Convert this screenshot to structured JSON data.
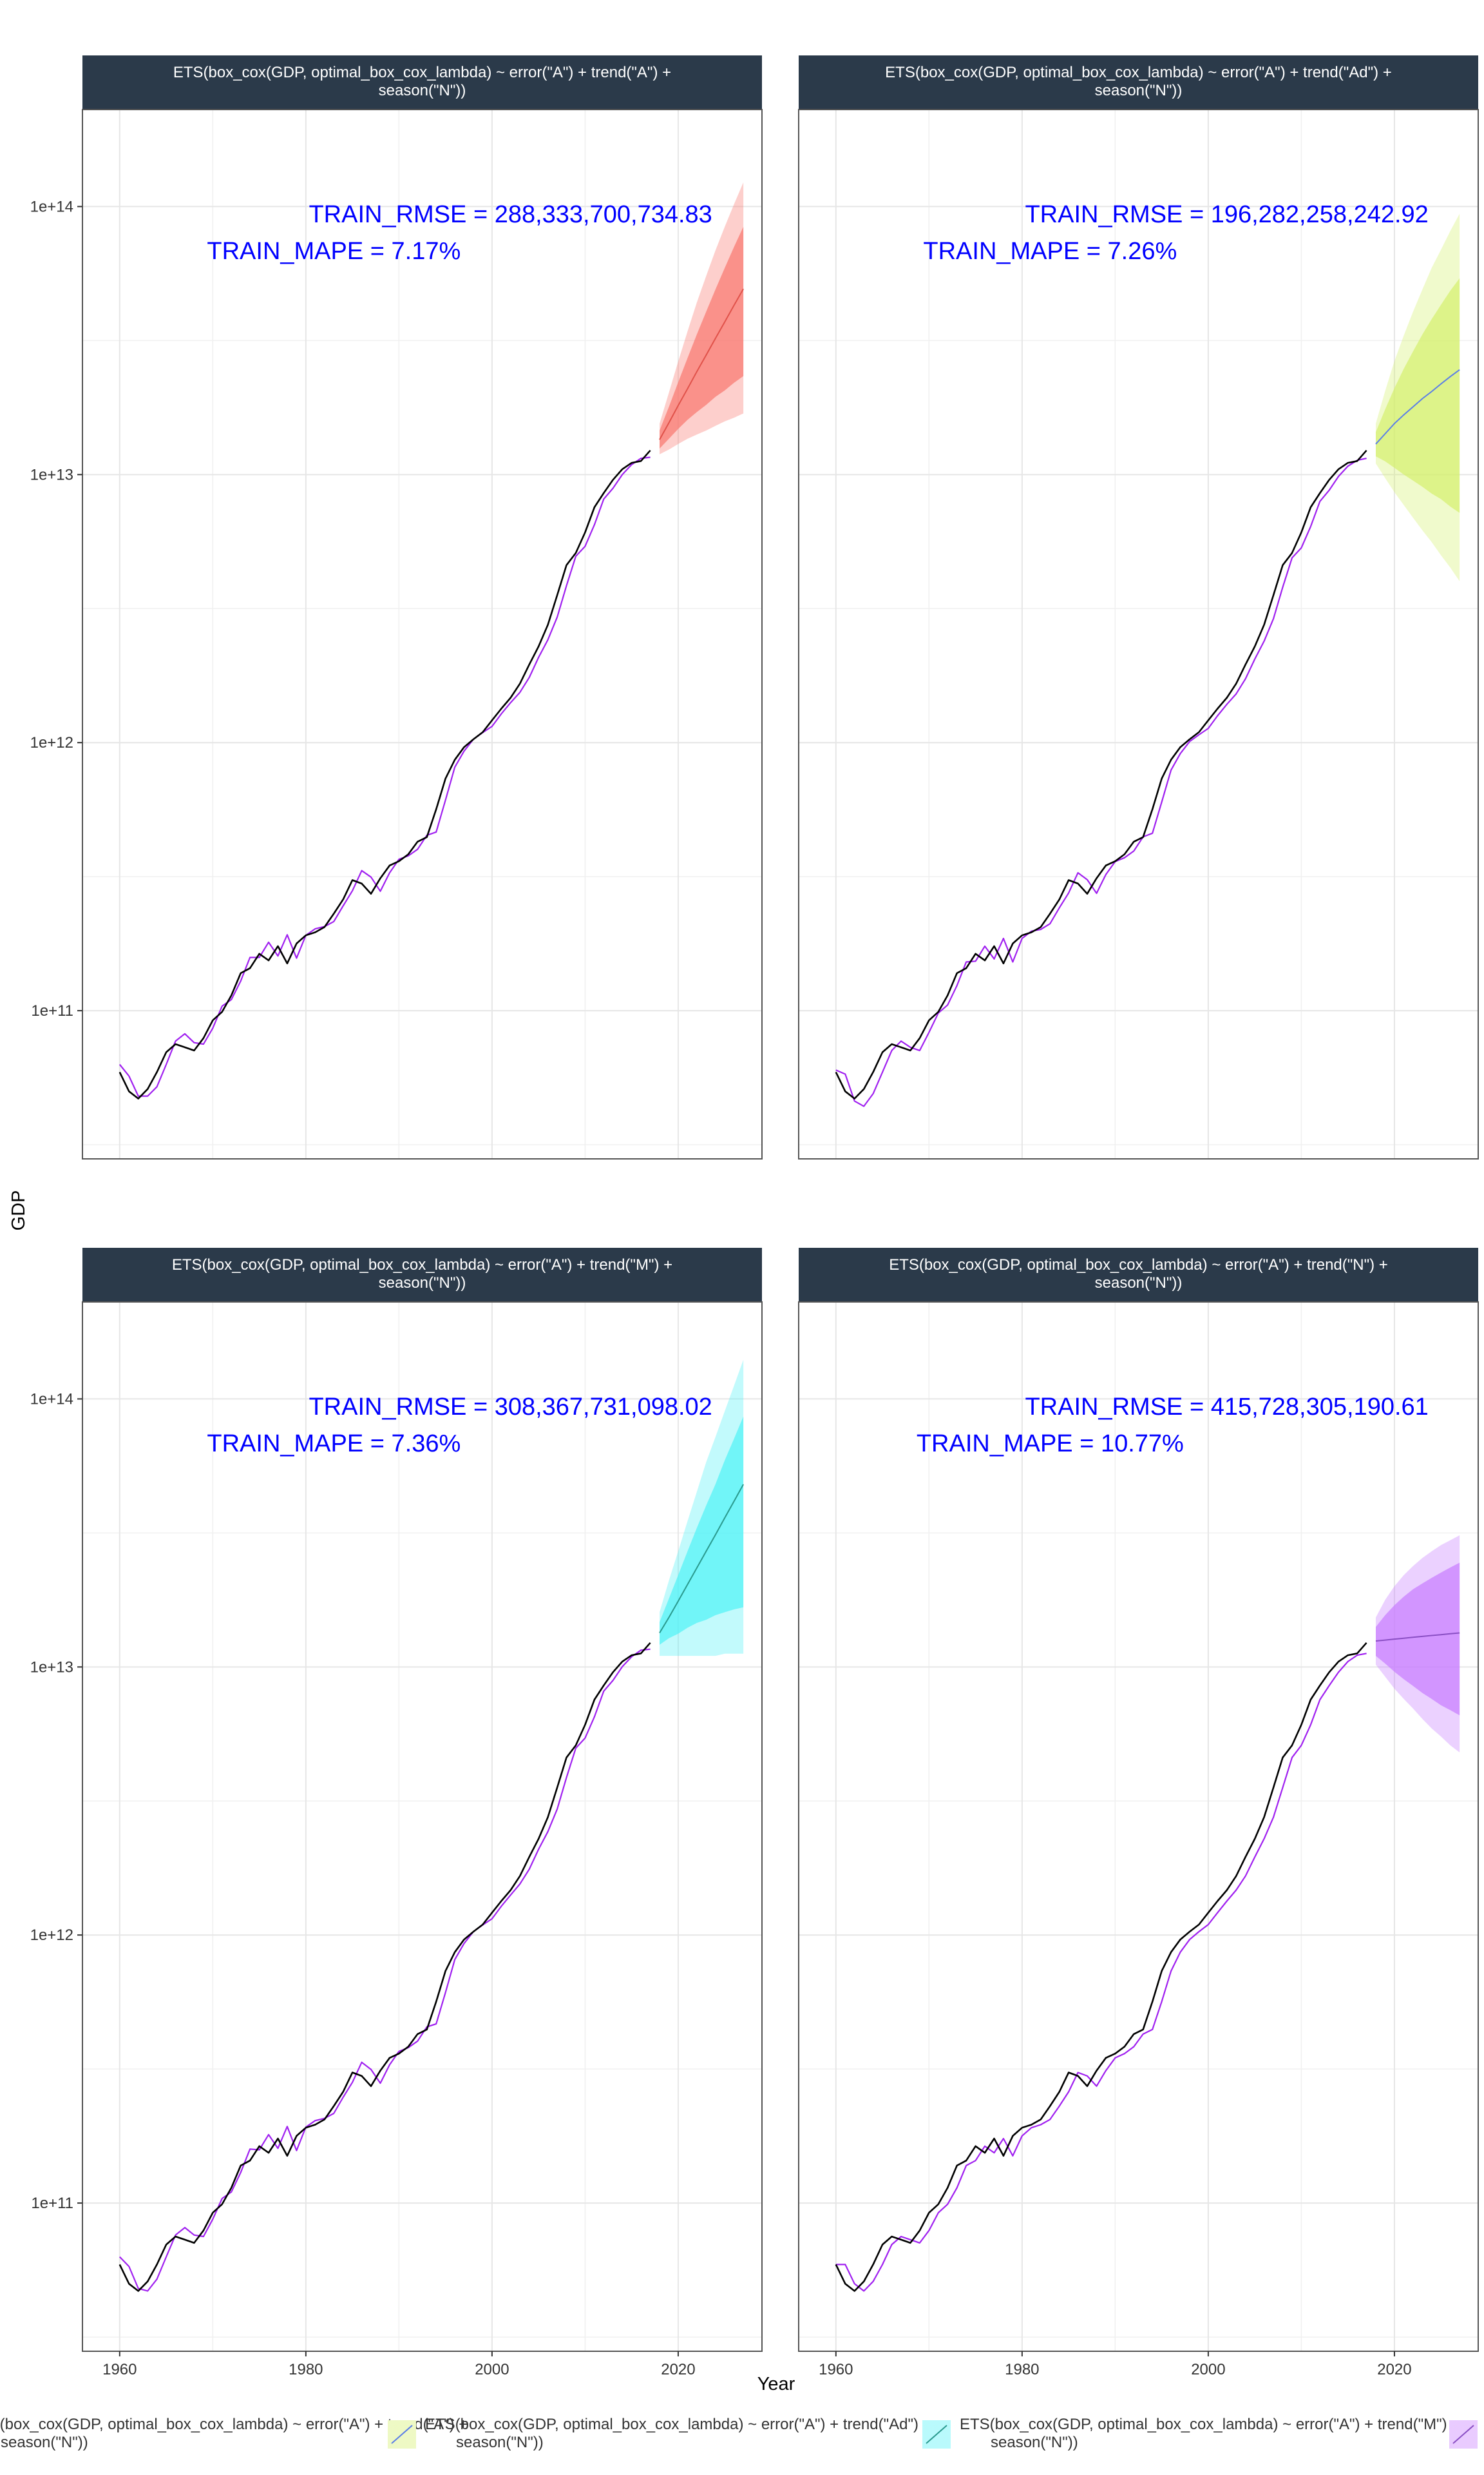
{
  "chart_data": {
    "type": "line",
    "xlabel": "Year",
    "ylabel": "GDP",
    "y_scale": "log10",
    "xlim": [
      1956,
      2029
    ],
    "ylim": [
      28000000000,
      230000000000000
    ],
    "x_ticks": [
      1960,
      1980,
      2000,
      2020
    ],
    "y_ticks": [
      {
        "value": 100000000000,
        "label": "1e+11"
      },
      {
        "value": 1000000000000,
        "label": "1e+12"
      },
      {
        "value": 10000000000000,
        "label": "1e+13"
      },
      {
        "value": 100000000000000,
        "label": "1e+14"
      }
    ],
    "grid": true,
    "legend_position": "bottom",
    "colors": {
      "actual": "#000000",
      "fitted": "#a020f0",
      "strip_bg": "#2b3a4a",
      "panel_border": "#555555",
      "grid": "#e6e6e6",
      "annotation": "#0000ff"
    },
    "actual_series": {
      "x_start": 1960,
      "values": [
        59000000000.0,
        50000000000.0,
        47000000000.0,
        51000000000.0,
        59000000000.0,
        70000000000.0,
        75000000000.0,
        73000000000.0,
        71000000000.0,
        79000000000.0,
        92000000000.0,
        99000000000.0,
        114000000000.0,
        138000000000.0,
        144000000000.0,
        163000000000.0,
        154000000000.0,
        174000000000.0,
        150000000000.0,
        178000000000.0,
        191000000000.0,
        196000000000.0,
        205000000000.0,
        230000000000.0,
        260000000000.0,
        307000000000.0,
        298000000000.0,
        273000000000.0,
        312000000000.0,
        348000000000.0,
        361000000000.0,
        383000000000.0,
        427000000000.0,
        444000000000.0,
        564000000000.0,
        734000000000.0,
        863000000000.0,
        962000000000.0,
        1029000000000.0,
        1094000000000.0,
        1211000000000.0,
        1339000000000.0,
        1471000000000.0,
        1660000000000.0,
        1955000000000.0,
        2286000000000.0,
        2752000000000.0,
        3550000000000.0,
        4594000000000.0,
        5102000000000.0,
        6087000000000.0,
        7552000000000.0,
        8532000000000.0,
        9570000000000.0,
        10475000000000.0,
        11061000000000.0,
        11233000000000.0,
        12310000000000.0
      ]
    },
    "panels": [
      {
        "title": "ETS(box_cox(GDP, optimal_box_cox_lambda) ~ error(\"A\") + trend(\"A\") +\nseason(\"N\"))",
        "rmse_text": "TRAIN_RMSE = 288,333,700,734.83",
        "mape_text": "TRAIN_MAPE = 7.17%",
        "fill": "#f8766d",
        "line": "#e0524a",
        "fitted": [
          63000000000.0,
          57000000000.0,
          48000000000.0,
          48000000000.0,
          52000000000.0,
          63000000000.0,
          77000000000.0,
          82000000000.0,
          76000000000.0,
          75000000000.0,
          86000000000.0,
          104000000000.0,
          110000000000.0,
          129000000000.0,
          158000000000.0,
          158000000000.0,
          180000000000.0,
          160000000000.0,
          192000000000.0,
          157000000000.0,
          191000000000.0,
          202000000000.0,
          206000000000.0,
          215000000000.0,
          246000000000.0,
          280000000000.0,
          333000000000.0,
          315000000000.0,
          279000000000.0,
          327000000000.0,
          367000000000.0,
          378000000000.0,
          400000000000.0,
          451000000000.0,
          464000000000.0,
          610000000000.0,
          810000000000.0,
          930000000000.0,
          1030000000000.0,
          1090000000000.0,
          1150000000000.0,
          1280000000000.0,
          1410000000000.0,
          1540000000000.0,
          1750000000000.0,
          2080000000000.0,
          2420000000000.0,
          2940000000000.0,
          3850000000000.0,
          4960000000000.0,
          5400000000000.0,
          6500000000000.0,
          8100000000000.0,
          8900000000000.0,
          10000000000000.0,
          10900000000000.0,
          11500000000000.0,
          11600000000000.0
        ],
        "forecast": {
          "x": [
            2018,
            2019,
            2020,
            2021,
            2022,
            2023,
            2024,
            2025,
            2026,
            2027
          ],
          "mean": [
            13500000000000.0,
            15600000000000.0,
            18100000000000.0,
            20900000000000.0,
            24200000000000.0,
            27900000000000.0,
            32200000000000.0,
            37100000000000.0,
            42800000000000.0,
            49300000000000.0
          ],
          "lo80": [
            12500000000000.0,
            13600000000000.0,
            14800000000000.0,
            16000000000000.0,
            17100000000000.0,
            18200000000000.0,
            19500000000000.0,
            20600000000000.0,
            22000000000000.0,
            23300000000000.0
          ],
          "hi80": [
            14600000000000.0,
            17900000000000.0,
            22100000000000.0,
            27200000000000.0,
            33300000000000.0,
            40500000000000.0,
            49000000000000.0,
            59000000000000.0,
            70700000000000.0,
            84000000000000.0
          ],
          "lo95": [
            11900000000000.0,
            12400000000000.0,
            13000000000000.0,
            13600000000000.0,
            14100000000000.0,
            14600000000000.0,
            15200000000000.0,
            15800000000000.0,
            16300000000000.0,
            16900000000000.0
          ],
          "hi95": [
            15500000000000.0,
            20200000000000.0,
            26400000000000.0,
            34200000000000.0,
            43800000000000.0,
            55000000000000.0,
            68500000000000.0,
            84000000000000.0,
            102000000000000.0,
            123000000000000.0
          ]
        }
      },
      {
        "title": "ETS(box_cox(GDP, optimal_box_cox_lambda) ~ error(\"A\") + trend(\"Ad\") +\nseason(\"N\"))",
        "rmse_text": "TRAIN_RMSE = 196,282,258,242.92",
        "mape_text": "TRAIN_MAPE = 7.26%",
        "fill": "#d4f06c",
        "line": "#5a7ee8",
        "fitted": [
          60000000000.0,
          58000000000.0,
          46000000000.0,
          44000000000.0,
          49000000000.0,
          59000000000.0,
          71000000000.0,
          77000000000.0,
          73000000000.0,
          71000000000.0,
          83000000000.0,
          98000000000.0,
          105000000000.0,
          124000000000.0,
          152000000000.0,
          153000000000.0,
          174000000000.0,
          156000000000.0,
          186000000000.0,
          152000000000.0,
          186000000000.0,
          198000000000.0,
          201000000000.0,
          211000000000.0,
          242000000000.0,
          275000000000.0,
          327000000000.0,
          308000000000.0,
          274000000000.0,
          322000000000.0,
          360000000000.0,
          372000000000.0,
          394000000000.0,
          445000000000.0,
          459000000000.0,
          600000000000.0,
          790000000000.0,
          910000000000.0,
          1010000000000.0,
          1070000000000.0,
          1130000000000.0,
          1260000000000.0,
          1390000000000.0,
          1520000000000.0,
          1730000000000.0,
          2050000000000.0,
          2390000000000.0,
          2900000000000.0,
          3800000000000.0,
          4890000000000.0,
          5330000000000.0,
          6400000000000.0,
          7950000000000.0,
          8750000000000.0,
          9850000000000.0,
          10750000000000.0,
          11300000000000.0,
          11500000000000.0
        ],
        "forecast": {
          "x": [
            2018,
            2019,
            2020,
            2021,
            2022,
            2023,
            2024,
            2025,
            2026,
            2027
          ],
          "mean": [
            13000000000000.0,
            14200000000000.0,
            15500000000000.0,
            16700000000000.0,
            17900000000000.0,
            19200000000000.0,
            20400000000000.0,
            21800000000000.0,
            23200000000000.0,
            24600000000000.0
          ],
          "lo80": [
            11700000000000.0,
            11200000000000.0,
            10600000000000.0,
            10000000000000.0,
            9500000000000.0,
            9000000000000.0,
            8500000000000.0,
            8100000000000.0,
            7600000000000.0,
            7200000000000.0
          ],
          "hi80": [
            14400000000000.0,
            17500000000000.0,
            21000000000000.0,
            24800000000000.0,
            28800000000000.0,
            33300000000000.0,
            38000000000000.0,
            43000000000000.0,
            48500000000000.0,
            54000000000000.0
          ],
          "lo95": [
            11000000000000.0,
            9700000000000.0,
            8600000000000.0,
            7700000000000.0,
            6900000000000.0,
            6200000000000.0,
            5600000000000.0,
            5000000000000.0,
            4500000000000.0,
            4000000000000.0
          ],
          "hi95": [
            15500000000000.0,
            20500000000000.0,
            26500000000000.0,
            33000000000000.0,
            40500000000000.0,
            49000000000000.0,
            59000000000000.0,
            69000000000000.0,
            81000000000000.0,
            94000000000000.0
          ]
        }
      },
      {
        "title": "ETS(box_cox(GDP, optimal_box_cox_lambda) ~ error(\"A\") + trend(\"M\") +\nseason(\"N\"))",
        "rmse_text": "TRAIN_RMSE = 308,367,731,098.02",
        "mape_text": "TRAIN_MAPE = 7.36%",
        "fill": "#4ff2f7",
        "line": "#2a9a8e",
        "fitted": [
          63000000000.0,
          58000000000.0,
          48000000000.0,
          47000000000.0,
          52000000000.0,
          63000000000.0,
          76000000000.0,
          81000000000.0,
          76000000000.0,
          75000000000.0,
          87000000000.0,
          104000000000.0,
          110000000000.0,
          130000000000.0,
          159000000000.0,
          158000000000.0,
          180000000000.0,
          160000000000.0,
          193000000000.0,
          157000000000.0,
          192000000000.0,
          203000000000.0,
          207000000000.0,
          216000000000.0,
          248000000000.0,
          282000000000.0,
          335000000000.0,
          315000000000.0,
          280000000000.0,
          328000000000.0,
          368000000000.0,
          380000000000.0,
          402000000000.0,
          454000000000.0,
          466000000000.0,
          610000000000.0,
          810000000000.0,
          930000000000.0,
          1030000000000.0,
          1090000000000.0,
          1150000000000.0,
          1280000000000.0,
          1410000000000.0,
          1550000000000.0,
          1760000000000.0,
          2090000000000.0,
          2430000000000.0,
          2950000000000.0,
          3870000000000.0,
          4980000000000.0,
          5430000000000.0,
          6520000000000.0,
          8120000000000.0,
          8920000000000.0,
          10030000000000.0,
          10920000000000.0,
          11550000000000.0,
          11650000000000.0
        ],
        "forecast": {
          "x": [
            2018,
            2019,
            2020,
            2021,
            2022,
            2023,
            2024,
            2025,
            2026,
            2027
          ],
          "mean": [
            13400000000000.0,
            15300000000000.0,
            17600000000000.0,
            20300000000000.0,
            23400000000000.0,
            27000000000000.0,
            31100000000000.0,
            36000000000000.0,
            41500000000000.0,
            48000000000000.0
          ],
          "lo80": [
            12100000000000.0,
            12800000000000.0,
            13300000000000.0,
            14000000000000.0,
            14600000000000.0,
            15000000000000.0,
            15600000000000.0,
            16000000000000.0,
            16400000000000.0,
            16700000000000.0
          ],
          "hi80": [
            14700000000000.0,
            18000000000000.0,
            22000000000000.0,
            27000000000000.0,
            33000000000000.0,
            40000000000000.0,
            48000000000000.0,
            59000000000000.0,
            71000000000000.0,
            86000000000000.0
          ],
          "lo95": [
            11000000000000.0,
            11000000000000.0,
            11000000000000.0,
            11000000000000.0,
            11000000000000.0,
            11000000000000.0,
            11000000000000.0,
            11200000000000.0,
            11200000000000.0,
            11200000000000.0
          ],
          "hi95": [
            16000000000000.0,
            21000000000000.0,
            27000000000000.0,
            35000000000000.0,
            45000000000000.0,
            58000000000000.0,
            72000000000000.0,
            90000000000000.0,
            112000000000000.0,
            140000000000000.0
          ]
        }
      },
      {
        "title": "ETS(box_cox(GDP, optimal_box_cox_lambda) ~ error(\"A\") + trend(\"N\") +\nseason(\"N\"))",
        "rmse_text": "TRAIN_RMSE = 415,728,305,190.61",
        "mape_text": "TRAIN_MAPE = 10.77%",
        "fill": "#c77cff",
        "line": "#8a4fc4",
        "fitted": [
          59000000000.0,
          59000000000.0,
          50000000000.0,
          47000000000.0,
          51000000000.0,
          59000000000.0,
          70000000000.0,
          75000000000.0,
          73000000000.0,
          71000000000.0,
          79000000000.0,
          92000000000.0,
          99000000000.0,
          114000000000.0,
          138000000000.0,
          144000000000.0,
          163000000000.0,
          154000000000.0,
          174000000000.0,
          150000000000.0,
          178000000000.0,
          191000000000.0,
          196000000000.0,
          205000000000.0,
          230000000000.0,
          260000000000.0,
          307000000000.0,
          298000000000.0,
          273000000000.0,
          312000000000.0,
          348000000000.0,
          361000000000.0,
          383000000000.0,
          427000000000.0,
          444000000000.0,
          564000000000.0,
          734000000000.0,
          863000000000.0,
          962000000000.0,
          1029000000000.0,
          1094000000000.0,
          1211000000000.0,
          1339000000000.0,
          1471000000000.0,
          1660000000000.0,
          1955000000000.0,
          2286000000000.0,
          2752000000000.0,
          3550000000000.0,
          4594000000000.0,
          5102000000000.0,
          6087000000000.0,
          7552000000000.0,
          8532000000000.0,
          9570000000000.0,
          10475000000000.0,
          11061000000000.0,
          11233000000000.0
        ],
        "forecast": {
          "x": [
            2018,
            2019,
            2020,
            2021,
            2022,
            2023,
            2024,
            2025,
            2026,
            2027
          ],
          "mean": [
            12500000000000.0,
            12600000000000.0,
            12700000000000.0,
            12800000000000.0,
            12900000000000.0,
            13000000000000.0,
            13100000000000.0,
            13200000000000.0,
            13300000000000.0,
            13400000000000.0
          ],
          "lo80": [
            11000000000000.0,
            10300000000000.0,
            9600000000000.0,
            9000000000000.0,
            8500000000000.0,
            8000000000000.0,
            7600000000000.0,
            7200000000000.0,
            6900000000000.0,
            6600000000000.0
          ],
          "hi80": [
            14100000000000.0,
            15600000000000.0,
            17000000000000.0,
            18300000000000.0,
            19500000000000.0,
            20500000000000.0,
            21500000000000.0,
            22500000000000.0,
            23500000000000.0,
            24500000000000.0
          ],
          "lo95": [
            10200000000000.0,
            9200000000000.0,
            8300000000000.0,
            7600000000000.0,
            7000000000000.0,
            6400000000000.0,
            5900000000000.0,
            5500000000000.0,
            5100000000000.0,
            4800000000000.0
          ],
          "hi95": [
            15300000000000.0,
            17800000000000.0,
            20000000000000.0,
            22000000000000.0,
            23800000000000.0,
            25500000000000.0,
            27000000000000.0,
            28500000000000.0,
            29700000000000.0,
            31000000000000.0
          ]
        }
      }
    ],
    "legend": [
      {
        "text": "ETS(box_cox(GDP, optimal_box_cox_lambda) ~ error(\"A\") + trend(\"A\") +\nseason(\"N\"))",
        "fill": "#f8766d",
        "line": "#e0524a"
      },
      {
        "text": "ETS(box_cox(GDP, optimal_box_cox_lambda) ~ error(\"A\") + trend(\"Ad\") +\nseason(\"N\"))",
        "fill": "#d4f06c",
        "line": "#5a7ee8"
      },
      {
        "text": "ETS(box_cox(GDP, optimal_box_cox_lambda) ~ error(\"A\") + trend(\"M\") +\nseason(\"N\"))",
        "fill": "#4ff2f7",
        "line": "#2a9a8e"
      },
      {
        "text": "",
        "fill": "#c77cff",
        "line": "#8a4fc4"
      }
    ]
  }
}
